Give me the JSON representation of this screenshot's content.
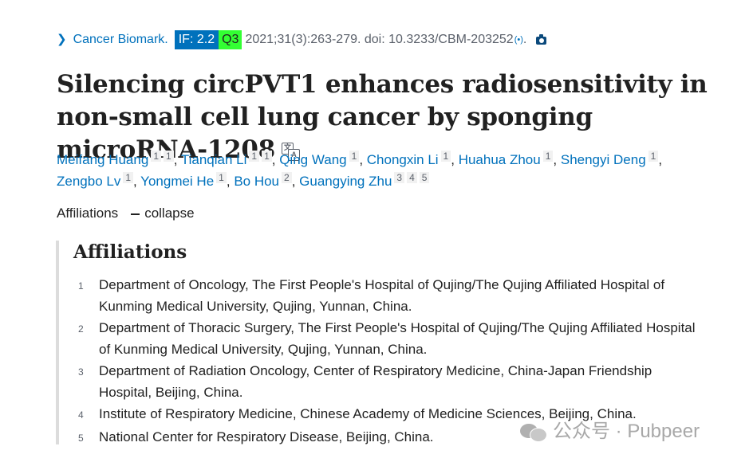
{
  "citation": {
    "journal": "Cancer Biomark.",
    "impact_factor": "IF: 2.2",
    "quartile": "Q3",
    "details": "2021;31(3):263-279. doi: 10.3233/CBM-203252",
    "period": ".",
    "icons": [
      "chevron-right-icon",
      "signal-icon",
      "camera-icon"
    ]
  },
  "title": "Silencing circPVT1 enhances radiosensitivity in non-small cell lung cancer by sponging microRNA-1208",
  "authors": [
    {
      "name": "Meifang Huang",
      "affs": [
        "1",
        "1"
      ]
    },
    {
      "name": "Tianqian Li",
      "affs": [
        "1",
        "1"
      ]
    },
    {
      "name": "Qing Wang",
      "affs": [
        "1"
      ]
    },
    {
      "name": "Chongxin Li",
      "affs": [
        "1"
      ]
    },
    {
      "name": "Huahua Zhou",
      "affs": [
        "1"
      ]
    },
    {
      "name": "Shengyi Deng",
      "affs": [
        "1"
      ]
    },
    {
      "name": "Zengbo Lv",
      "affs": [
        "1"
      ]
    },
    {
      "name": "Yongmei He",
      "affs": [
        "1"
      ]
    },
    {
      "name": "Bo Hou",
      "affs": [
        "2"
      ]
    },
    {
      "name": "Guangying Zhu",
      "affs": [
        "3",
        "4",
        "5"
      ]
    }
  ],
  "affiliations_toggle": {
    "label": "Affiliations",
    "action": "collapse"
  },
  "affiliations": {
    "heading": "Affiliations",
    "items": [
      {
        "num": "1",
        "text": "Department of Oncology, The First People's Hospital of Qujing/The Qujing Affiliated Hospital of Kunming Medical University, Qujing, Yunnan, China."
      },
      {
        "num": "2",
        "text": "Department of Thoracic Surgery, The First People's Hospital of Qujing/The Qujing Affiliated Hospital of Kunming Medical University, Qujing, Yunnan, China."
      },
      {
        "num": "3",
        "text": "Department of Radiation Oncology, Center of Respiratory Medicine, China-Japan Friendship Hospital, Beijing, China."
      },
      {
        "num": "4",
        "text": "Institute of Respiratory Medicine, Chinese Academy of Medicine Sciences, Beijing, China."
      },
      {
        "num": "5",
        "text": "National Center for Respiratory Disease, Beijing, China."
      }
    ]
  },
  "watermark": {
    "text": "公众号 · Pubpeer",
    "icon": "wechat-icon"
  },
  "colors": {
    "link": "#0071bc",
    "if_badge": "#0071bc",
    "q_badge": "#33ff33",
    "text": "#212121",
    "muted": "#5b616b"
  }
}
